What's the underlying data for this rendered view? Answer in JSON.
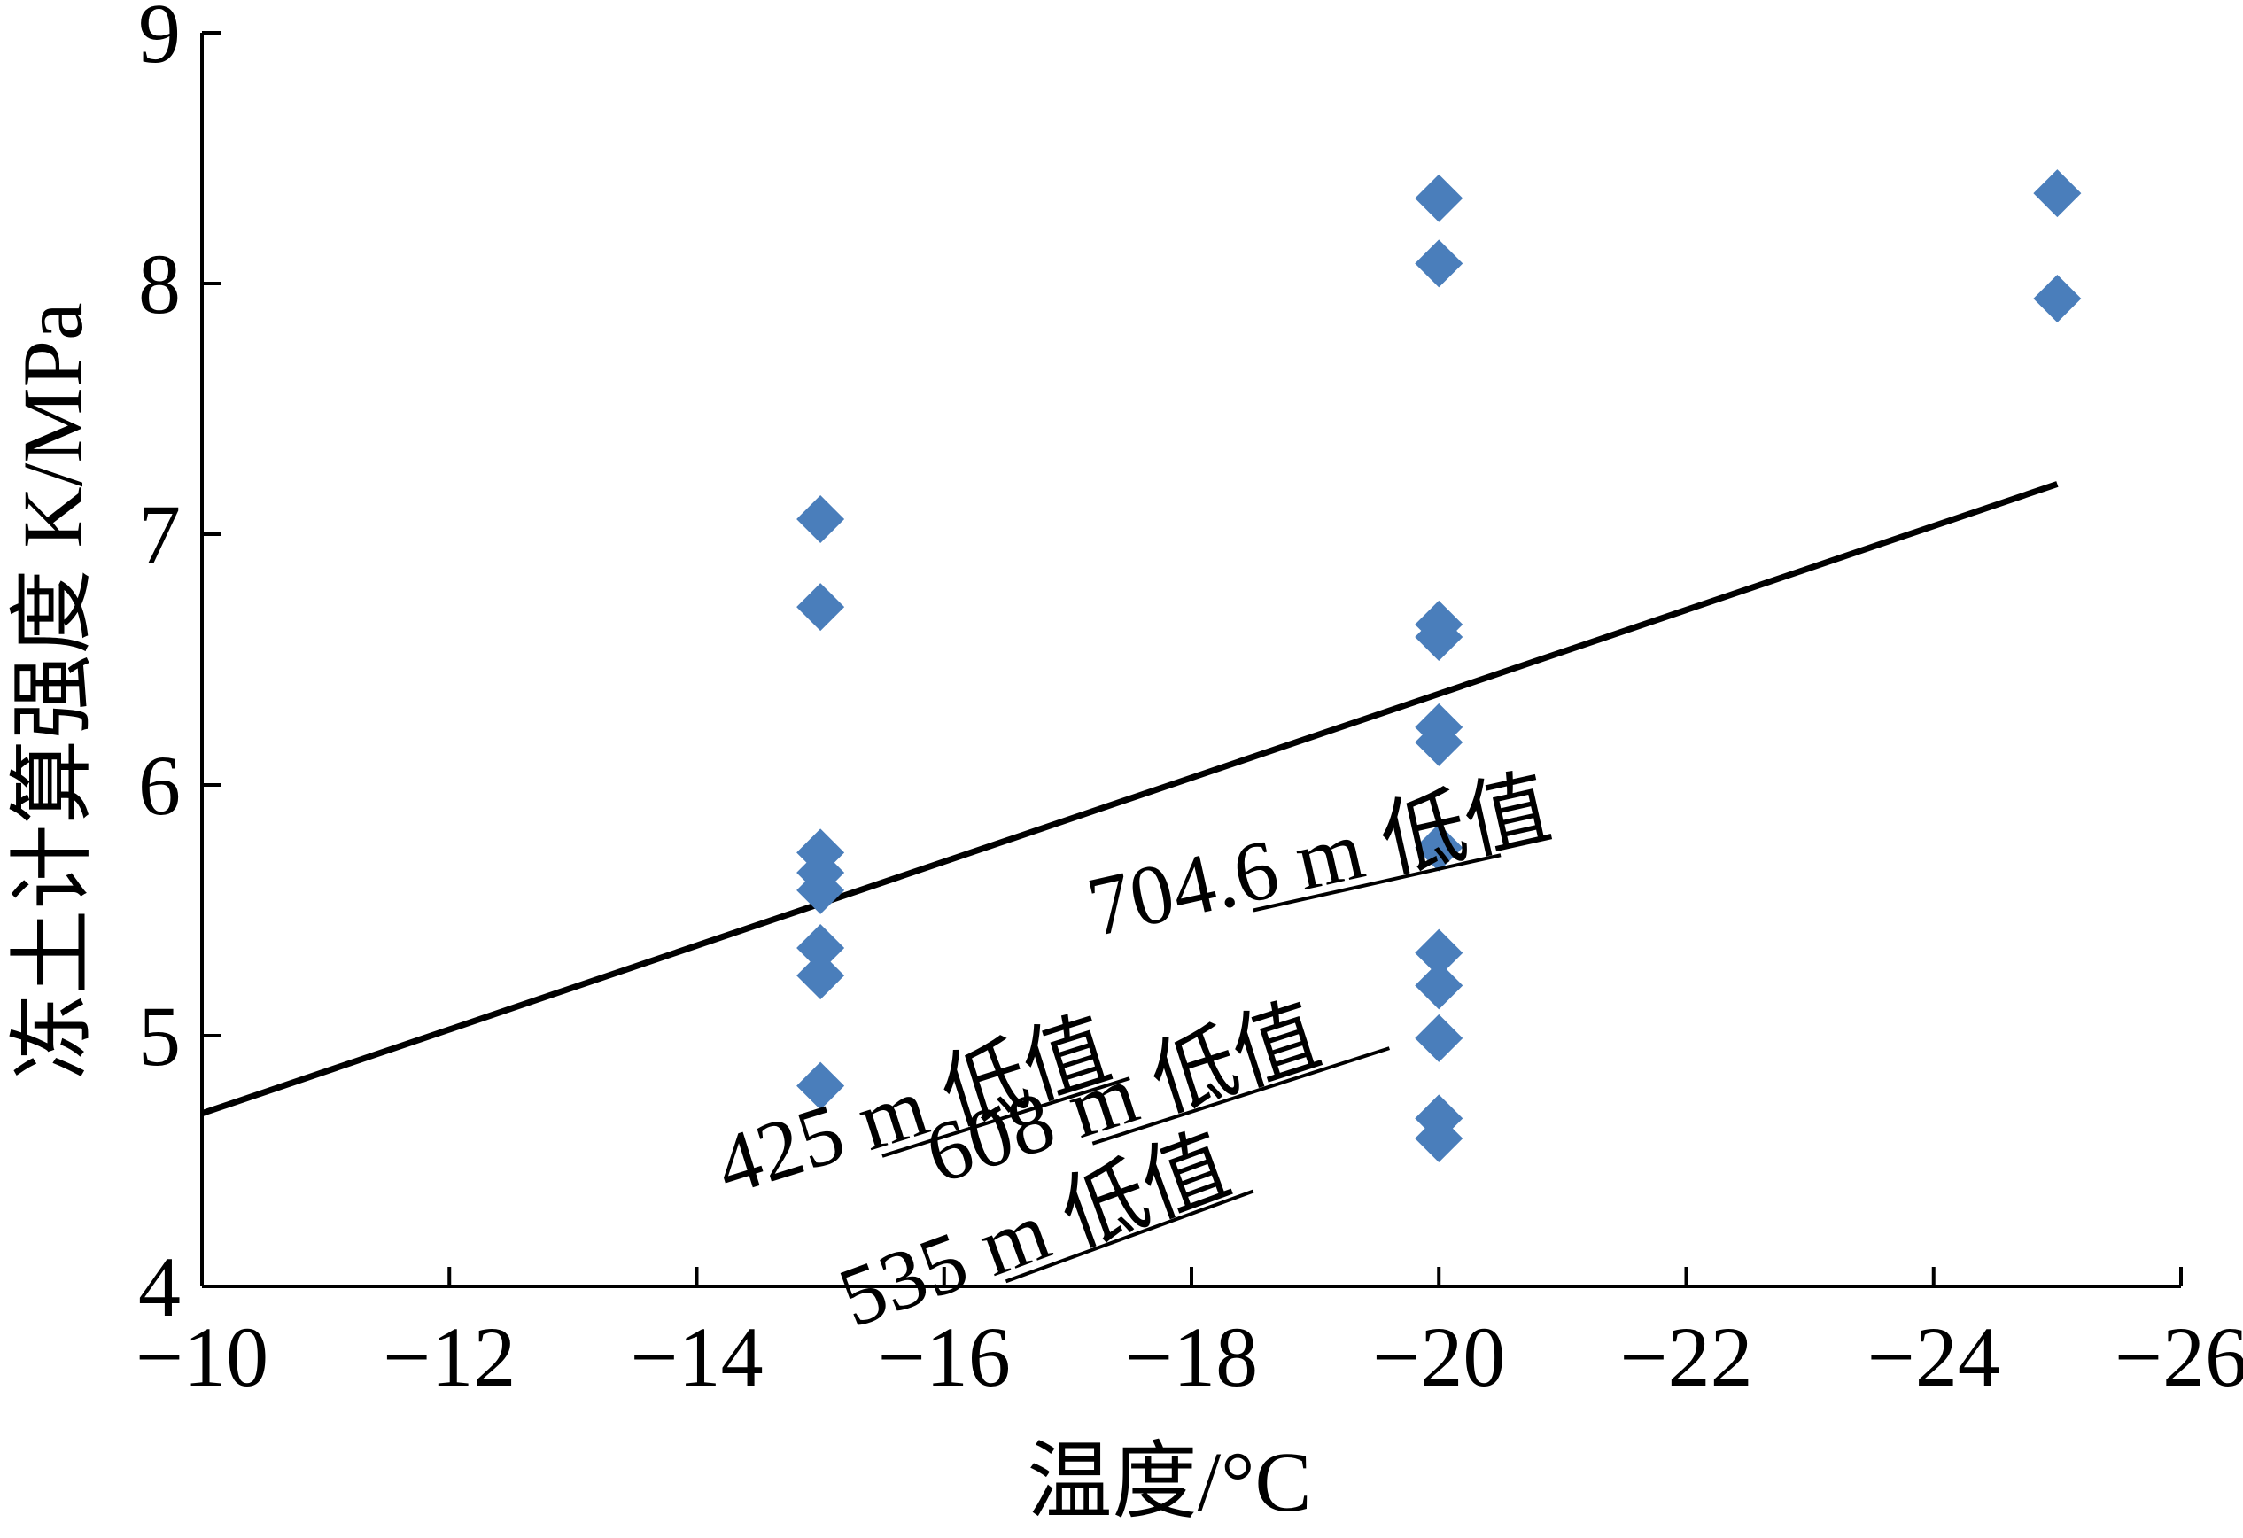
{
  "chart_data": {
    "type": "scatter",
    "title": "",
    "xlabel": "温度/°C",
    "ylabel": "冻土计算强度 K/MPa",
    "xlim": [
      -10,
      -26
    ],
    "ylim": [
      4,
      9
    ],
    "x_ticks": [
      -10,
      -12,
      -14,
      -16,
      -18,
      -20,
      -22,
      -24,
      -26
    ],
    "y_ticks": [
      4,
      5,
      6,
      7,
      8,
      9
    ],
    "x_tick_labels": [
      "−10",
      "−12",
      "−14",
      "−16",
      "−18",
      "−20",
      "−22",
      "−24",
      "−26"
    ],
    "y_tick_labels": [
      "4",
      "5",
      "6",
      "7",
      "8",
      "9"
    ],
    "grid": false,
    "series": [
      {
        "marker": "diamond",
        "color": "#4a7ebb",
        "points": [
          [
            -15,
            7.06
          ],
          [
            -15,
            6.71
          ],
          [
            -15,
            5.73
          ],
          [
            -15,
            5.65
          ],
          [
            -15,
            5.58
          ],
          [
            -15,
            5.35
          ],
          [
            -15,
            5.24
          ],
          [
            -15,
            4.8
          ],
          [
            -20,
            8.34
          ],
          [
            -20,
            8.08
          ],
          [
            -20,
            6.64
          ],
          [
            -20,
            6.59
          ],
          [
            -20,
            6.23
          ],
          [
            -20,
            6.17
          ],
          [
            -20,
            5.75
          ],
          [
            -20,
            5.33
          ],
          [
            -20,
            5.2
          ],
          [
            -20,
            4.99
          ],
          [
            -20,
            4.67
          ],
          [
            -20,
            4.59
          ],
          [
            -25,
            8.36
          ],
          [
            -25,
            7.94
          ]
        ]
      }
    ],
    "fit_line": {
      "from": [
        -10,
        4.69
      ],
      "to": [
        -25,
        7.2
      ],
      "color": "#000000"
    },
    "annotations": [
      {
        "text": "704.6 m 低值",
        "anchor": [
          -18.5,
          5.5
        ],
        "target": [
          -20.5,
          5.72
        ]
      },
      {
        "text": "425 m 低值",
        "anchor": [
          -15.5,
          4.52
        ],
        "target": [
          -17.5,
          4.83
        ]
      },
      {
        "text": "608 m 低值",
        "anchor": [
          -17.2,
          4.57
        ],
        "target": [
          -19.6,
          4.95
        ]
      },
      {
        "text": "535 m 低值",
        "anchor": [
          -16.5,
          4.02
        ],
        "target": [
          -18.5,
          4.38
        ]
      }
    ]
  }
}
